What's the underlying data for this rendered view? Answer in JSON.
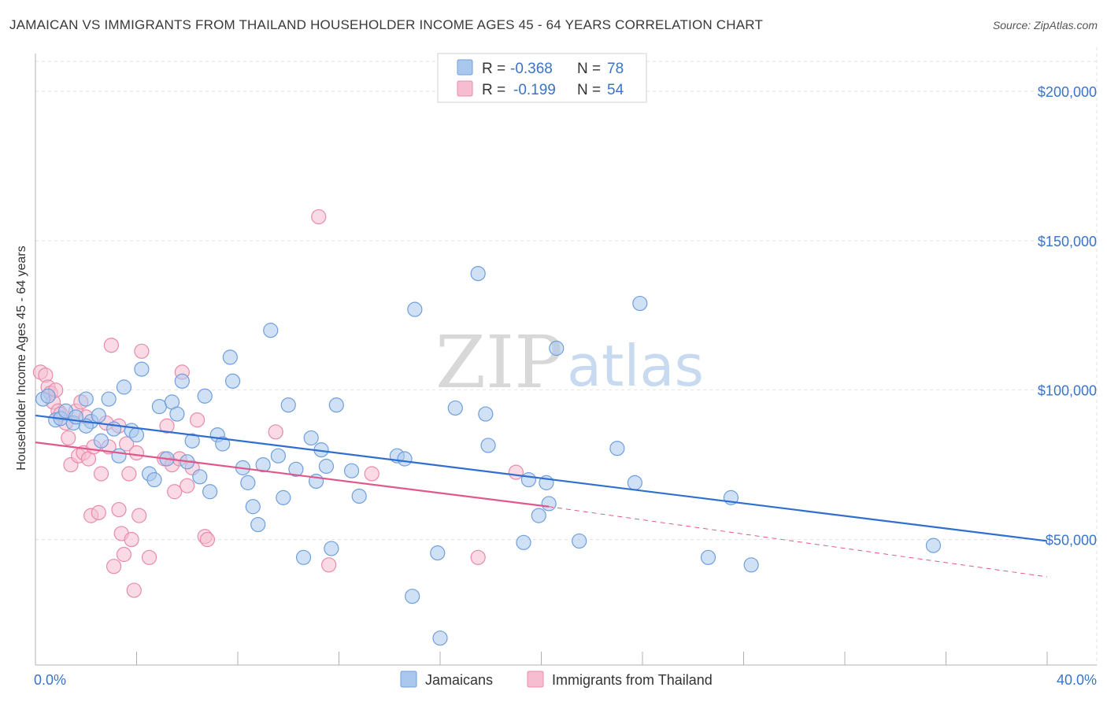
{
  "title": "JAMAICAN VS IMMIGRANTS FROM THAILAND HOUSEHOLDER INCOME AGES 45 - 64 YEARS CORRELATION CHART",
  "source": "Source: ZipAtlas.com",
  "watermark": {
    "zip": "ZIP",
    "atlas": "atlas"
  },
  "colors": {
    "blue_fill": "#aac8ee",
    "blue_stroke": "#6f9fdb",
    "blue_line": "#2f6fcf",
    "pink_fill": "#f6bdd0",
    "pink_stroke": "#e98aaa",
    "pink_line": "#e0588a",
    "axis_text": "#3a74c8",
    "grid": "#e3e3e3"
  },
  "legend": {
    "rows": [
      {
        "r_label": "R = ",
        "r_value": "-0.368",
        "n_label": "N = ",
        "n_value": "78",
        "color": "blue"
      },
      {
        "r_label": "R = ",
        "r_value": "-0.199",
        "n_label": "N = ",
        "n_value": "54",
        "color": "pink"
      }
    ]
  },
  "bottom_legend": [
    {
      "label": "Jamaicans",
      "color": "blue"
    },
    {
      "label": "Immigrants from Thailand",
      "color": "pink"
    }
  ],
  "chart_data": {
    "type": "scatter",
    "title": "JAMAICAN VS IMMIGRANTS FROM THAILAND HOUSEHOLDER INCOME AGES 45 - 64 YEARS CORRELATION CHART",
    "xlabel": "",
    "ylabel": "Householder Income Ages 45 - 64 years",
    "xlim": [
      0,
      40
    ],
    "ylim": [
      8000,
      210000
    ],
    "x_tick_labels": [
      "0.0%",
      "40.0%"
    ],
    "y_ticks": [
      50000,
      100000,
      150000,
      200000
    ],
    "y_tick_labels": [
      "$50,000",
      "$100,000",
      "$150,000",
      "$200,000"
    ],
    "grid": true,
    "legend_position": "top-center",
    "series": [
      {
        "name": "Jamaicans",
        "color": "blue",
        "points": [
          [
            0.3,
            97000
          ],
          [
            0.5,
            98000
          ],
          [
            0.8,
            90000
          ],
          [
            1.0,
            90500
          ],
          [
            1.2,
            93000
          ],
          [
            1.5,
            89000
          ],
          [
            1.6,
            91000
          ],
          [
            2.0,
            97000
          ],
          [
            2.2,
            89500
          ],
          [
            2.5,
            91500
          ],
          [
            2.6,
            83000
          ],
          [
            2.9,
            97000
          ],
          [
            3.1,
            87000
          ],
          [
            3.3,
            78000
          ],
          [
            3.5,
            101000
          ],
          [
            3.8,
            86500
          ],
          [
            4.0,
            85000
          ],
          [
            4.2,
            107000
          ],
          [
            4.5,
            72000
          ],
          [
            4.7,
            70000
          ],
          [
            4.9,
            94500
          ],
          [
            5.2,
            77000
          ],
          [
            5.4,
            96000
          ],
          [
            5.6,
            92000
          ],
          [
            5.8,
            103000
          ],
          [
            6.0,
            76000
          ],
          [
            6.2,
            83000
          ],
          [
            6.5,
            71000
          ],
          [
            6.7,
            98000
          ],
          [
            6.9,
            66000
          ],
          [
            7.2,
            85000
          ],
          [
            7.4,
            82000
          ],
          [
            7.7,
            111000
          ],
          [
            7.8,
            103000
          ],
          [
            8.2,
            74000
          ],
          [
            8.4,
            69000
          ],
          [
            8.6,
            61000
          ],
          [
            8.8,
            55000
          ],
          [
            9.0,
            75000
          ],
          [
            9.3,
            120000
          ],
          [
            9.6,
            78000
          ],
          [
            9.8,
            64000
          ],
          [
            10.0,
            95000
          ],
          [
            10.3,
            73500
          ],
          [
            10.6,
            44000
          ],
          [
            10.9,
            84000
          ],
          [
            11.1,
            69500
          ],
          [
            11.3,
            80000
          ],
          [
            11.5,
            74500
          ],
          [
            11.7,
            47000
          ],
          [
            11.9,
            95000
          ],
          [
            12.5,
            73000
          ],
          [
            12.8,
            64500
          ],
          [
            14.3,
            78000
          ],
          [
            14.6,
            77000
          ],
          [
            14.9,
            31000
          ],
          [
            15.0,
            127000
          ],
          [
            15.9,
            45500
          ],
          [
            16.0,
            17000
          ],
          [
            16.6,
            94000
          ],
          [
            17.5,
            139000
          ],
          [
            17.8,
            92000
          ],
          [
            17.9,
            81500
          ],
          [
            19.3,
            49000
          ],
          [
            19.5,
            70000
          ],
          [
            19.9,
            58000
          ],
          [
            20.2,
            69000
          ],
          [
            20.3,
            62000
          ],
          [
            20.6,
            114000
          ],
          [
            21.5,
            49500
          ],
          [
            23.0,
            80500
          ],
          [
            23.7,
            69000
          ],
          [
            23.9,
            129000
          ],
          [
            26.6,
            44000
          ],
          [
            27.5,
            64000
          ],
          [
            28.3,
            41500
          ],
          [
            35.5,
            48000
          ],
          [
            2.0,
            88000
          ]
        ]
      },
      {
        "name": "Immigrants from Thailand",
        "color": "pink",
        "points": [
          [
            0.2,
            106000
          ],
          [
            0.4,
            105000
          ],
          [
            0.5,
            101000
          ],
          [
            0.6,
            99000
          ],
          [
            0.7,
            96000
          ],
          [
            0.8,
            100000
          ],
          [
            0.9,
            93000
          ],
          [
            1.0,
            92000
          ],
          [
            1.2,
            89000
          ],
          [
            1.3,
            84000
          ],
          [
            1.4,
            75000
          ],
          [
            1.6,
            93000
          ],
          [
            1.7,
            78000
          ],
          [
            1.8,
            96000
          ],
          [
            1.9,
            79000
          ],
          [
            2.0,
            91000
          ],
          [
            2.1,
            77000
          ],
          [
            2.2,
            58000
          ],
          [
            2.3,
            81000
          ],
          [
            2.5,
            59000
          ],
          [
            2.6,
            72000
          ],
          [
            2.8,
            89000
          ],
          [
            2.9,
            81000
          ],
          [
            3.0,
            115000
          ],
          [
            3.1,
            41000
          ],
          [
            3.3,
            60000
          ],
          [
            3.4,
            52000
          ],
          [
            3.5,
            45000
          ],
          [
            3.6,
            82000
          ],
          [
            3.7,
            72000
          ],
          [
            3.8,
            50000
          ],
          [
            3.9,
            33000
          ],
          [
            4.0,
            79000
          ],
          [
            4.1,
            58000
          ],
          [
            4.2,
            113000
          ],
          [
            4.5,
            44000
          ],
          [
            5.1,
            77000
          ],
          [
            5.2,
            88000
          ],
          [
            5.4,
            75000
          ],
          [
            5.5,
            66000
          ],
          [
            5.7,
            77000
          ],
          [
            5.8,
            106000
          ],
          [
            6.0,
            68000
          ],
          [
            6.2,
            74000
          ],
          [
            6.4,
            90000
          ],
          [
            6.7,
            51000
          ],
          [
            6.8,
            50000
          ],
          [
            9.5,
            86000
          ],
          [
            11.2,
            158000
          ],
          [
            11.6,
            41500
          ],
          [
            13.3,
            72000
          ],
          [
            17.5,
            44000
          ],
          [
            19.0,
            72500
          ],
          [
            3.3,
            88000
          ]
        ]
      }
    ],
    "trend_lines": [
      {
        "series": "Jamaicans",
        "x": [
          0,
          40
        ],
        "y": [
          91500,
          49500
        ],
        "style": "solid"
      },
      {
        "series": "Immigrants from Thailand",
        "x": [
          0,
          20.3
        ],
        "y": [
          82500,
          61000
        ],
        "style": "solid"
      },
      {
        "series": "Immigrants from Thailand",
        "x": [
          20.3,
          40
        ],
        "y": [
          61000,
          37500
        ],
        "style": "dashed"
      }
    ]
  }
}
